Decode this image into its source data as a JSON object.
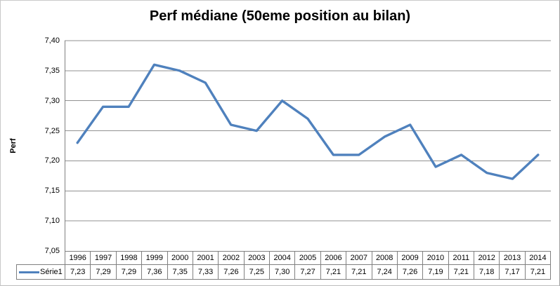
{
  "chart_data": {
    "type": "line",
    "title": "Perf médiane (50eme position au bilan)",
    "ylabel": "Perf",
    "xlabel": "",
    "categories": [
      "1996",
      "1997",
      "1998",
      "1999",
      "2000",
      "2001",
      "2002",
      "2003",
      "2004",
      "2005",
      "2006",
      "2007",
      "2008",
      "2009",
      "2010",
      "2011",
      "2012",
      "2013",
      "2014"
    ],
    "series": [
      {
        "name": "Série1",
        "values": [
          7.23,
          7.29,
          7.29,
          7.36,
          7.35,
          7.33,
          7.26,
          7.25,
          7.3,
          7.27,
          7.21,
          7.21,
          7.24,
          7.26,
          7.19,
          7.21,
          7.18,
          7.17,
          7.21
        ],
        "value_labels": [
          "7,23",
          "7,29",
          "7,29",
          "7,36",
          "7,35",
          "7,33",
          "7,26",
          "7,25",
          "7,30",
          "7,27",
          "7,21",
          "7,21",
          "7,24",
          "7,26",
          "7,19",
          "7,21",
          "7,18",
          "7,17",
          "7,21"
        ],
        "color": "#4F81BD"
      }
    ],
    "ylim": [
      7.05,
      7.4
    ],
    "ytick_step": 0.05,
    "yticks": [
      {
        "value": 7.4,
        "label": "7,40"
      },
      {
        "value": 7.35,
        "label": "7,35"
      },
      {
        "value": 7.3,
        "label": "7,30"
      },
      {
        "value": 7.25,
        "label": "7,25"
      },
      {
        "value": 7.2,
        "label": "7,20"
      },
      {
        "value": 7.15,
        "label": "7,15"
      },
      {
        "value": 7.1,
        "label": "7,10"
      },
      {
        "value": 7.05,
        "label": "7,05"
      }
    ],
    "grid": true,
    "legend_position": "bottom-left",
    "data_table_shown": true,
    "colors": {
      "line": "#4F81BD",
      "gridline": "#919191",
      "axis": "#808080",
      "table_border": "#808080",
      "text": "#000000",
      "background": "#FFFFFF"
    }
  }
}
